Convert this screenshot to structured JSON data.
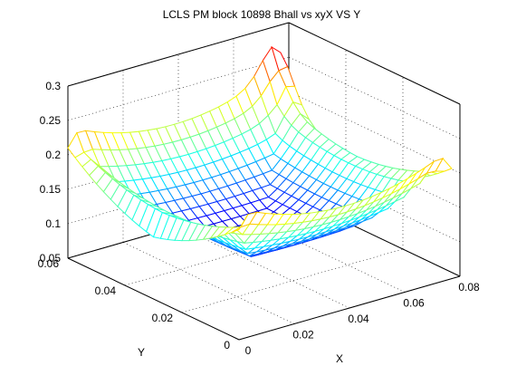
{
  "chart_data": {
    "type": "surface",
    "title": "LCLS PM block 10898 Bhall vs xyX VS Y",
    "xlabel": "X",
    "ylabel": "Y",
    "zlabel": "",
    "xlim": [
      0,
      0.08
    ],
    "ylim": [
      0,
      0.06
    ],
    "zlim": [
      0.05,
      0.3
    ],
    "xticks": [
      "0",
      "0.02",
      "0.04",
      "0.06",
      "0.08"
    ],
    "yticks": [
      "0",
      "0.02",
      "0.04",
      "0.06"
    ],
    "zticks": [
      "0.05",
      "0.1",
      "0.15",
      "0.2",
      "0.25",
      "0.3"
    ],
    "grid": true,
    "colormap": "jet",
    "mesh": {
      "nx": 25,
      "ny": 25,
      "x_range": [
        0,
        0.077
      ],
      "y_range": [
        0,
        0.06
      ],
      "z_center": 0.09,
      "z_edge_mid": 0.2,
      "z_corner": 0.24,
      "z_peak": 0.29,
      "z_end": 0.14
    }
  }
}
